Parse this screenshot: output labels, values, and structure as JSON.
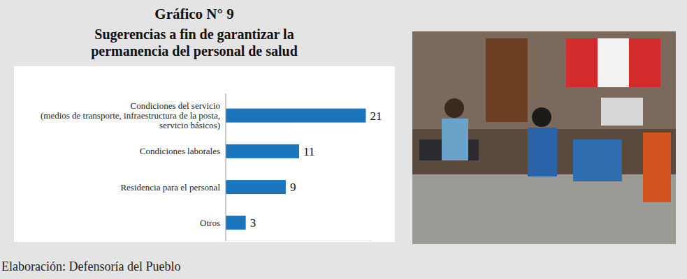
{
  "chart_data": {
    "type": "bar",
    "orientation": "horizontal",
    "title": "Gráfico N° 9",
    "subtitle": "Sugerencias a fin de garantizar la permanencia del personal de salud",
    "source": "Elaboración: Defensoría del Pueblo",
    "categories": [
      "Condiciones del servicio (medios de transporte, infraestructura de la posta, servicio básicos)",
      "Condiciones laborales",
      "Residencia para el personal",
      "Otros"
    ],
    "values": [
      21,
      11,
      9,
      3
    ],
    "color": "#1b75bc",
    "xlim": [
      0,
      22
    ],
    "data_labels": true,
    "tick_labels": "y",
    "grid": false
  }
}
